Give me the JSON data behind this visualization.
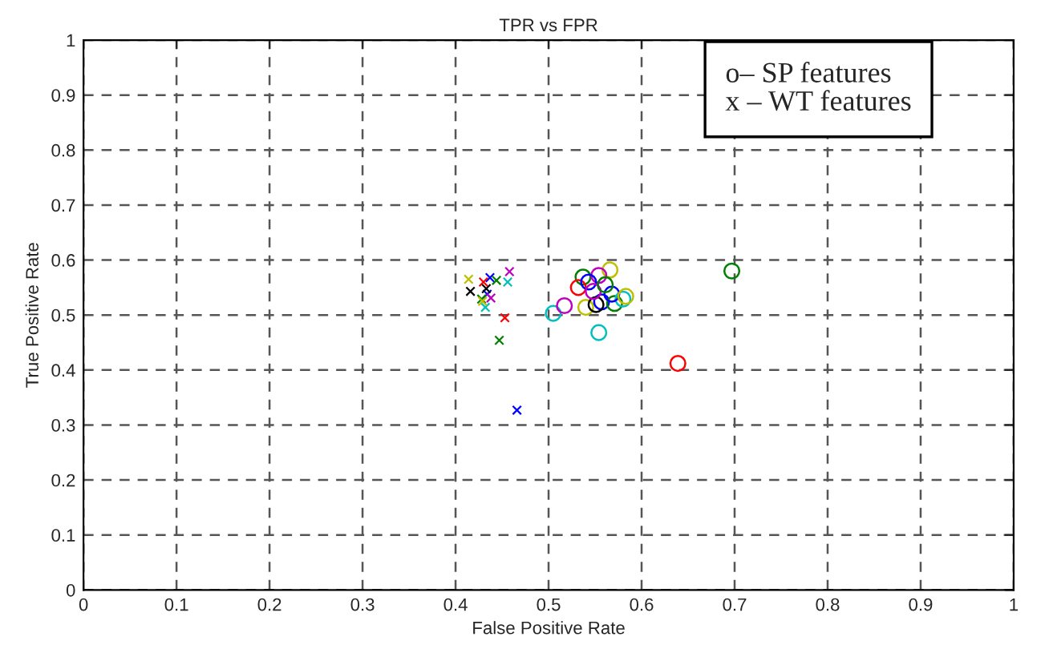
{
  "chart_data": {
    "type": "scatter",
    "title": "TPR vs FPR",
    "xlabel": "False Positive Rate",
    "ylabel": "True Positive Rate",
    "xlim": [
      0,
      1
    ],
    "ylim": [
      0,
      1
    ],
    "xticks": [
      0,
      0.1,
      0.2,
      0.3,
      0.4,
      0.5,
      0.6,
      0.7,
      0.8,
      0.9,
      1
    ],
    "yticks": [
      0,
      0.1,
      0.2,
      0.3,
      0.4,
      0.5,
      0.6,
      0.7,
      0.8,
      0.9,
      1
    ],
    "grid": true,
    "annotations": [
      "o– SP features",
      "x – WT features"
    ],
    "series": [
      {
        "marker": "circle",
        "x": [
          0.505,
          0.517,
          0.554,
          0.639,
          0.697,
          0.537,
          0.566,
          0.532,
          0.554,
          0.543,
          0.54,
          0.557,
          0.571,
          0.58,
          0.551,
          0.568,
          0.548,
          0.561,
          0.583
        ],
        "values": [
          0.503,
          0.517,
          0.468,
          0.412,
          0.58,
          0.569,
          0.582,
          0.55,
          0.572,
          0.56,
          0.514,
          0.524,
          0.521,
          0.529,
          0.519,
          0.538,
          0.543,
          0.555,
          0.534
        ],
        "colors": [
          "#00bfbf",
          "#bf00bf",
          "#00bfbf",
          "#ff0000",
          "#008000",
          "#008000",
          "#bfbf00",
          "#ff0000",
          "#bf00bf",
          "#0000ff",
          "#bfbf00",
          "#0000ff",
          "#008000",
          "#00bfbf",
          "#000000",
          "#0000ff",
          "#bf00bf",
          "#008000",
          "#bfbf00"
        ]
      },
      {
        "marker": "cross",
        "x": [
          0.414,
          0.416,
          0.437,
          0.444,
          0.458,
          0.456,
          0.453,
          0.447,
          0.466,
          0.43,
          0.434,
          0.428,
          0.432,
          0.429,
          0.433,
          0.438
        ],
        "values": [
          0.565,
          0.543,
          0.568,
          0.563,
          0.579,
          0.56,
          0.495,
          0.454,
          0.327,
          0.56,
          0.538,
          0.529,
          0.514,
          0.525,
          0.548,
          0.531
        ],
        "colors": [
          "#bfbf00",
          "#000000",
          "#0000ff",
          "#008000",
          "#bf00bf",
          "#00bfbf",
          "#ff0000",
          "#008000",
          "#0000ff",
          "#ff0000",
          "#0000ff",
          "#008000",
          "#00bfbf",
          "#bfbf00",
          "#000000",
          "#bf00bf"
        ]
      }
    ]
  }
}
